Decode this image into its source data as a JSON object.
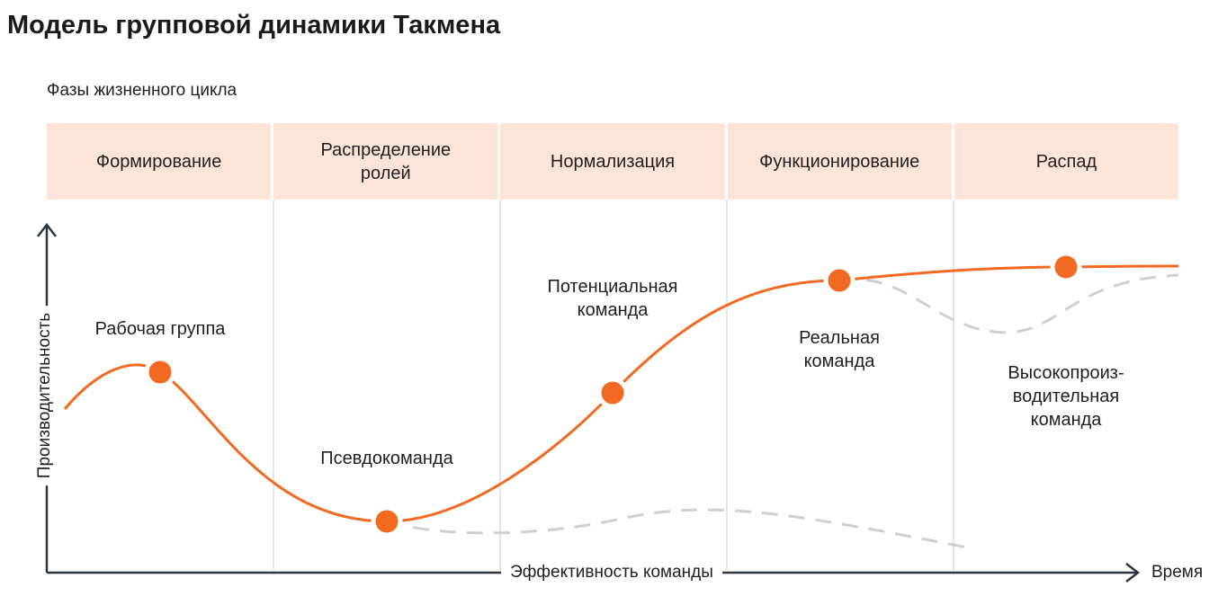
{
  "title": "Модель групповой динамики Такмена",
  "subtitle": "Фазы жизненного цикла",
  "phases": [
    "Формирование",
    "Распределение\nролей",
    "Нормализация",
    "Функционирование",
    "Распад"
  ],
  "axes": {
    "y_label": "Производительность",
    "x_label": "Эффективность команды",
    "x_end_label": "Время"
  },
  "stages": [
    "Рабочая группа",
    "Псевдокоманда",
    "Потенциальная\nкоманда",
    "Реальная\nкоманда",
    "Высокопроиз-\nводительная\nкоманда"
  ],
  "colors": {
    "curve": "#f26a21",
    "point": "#f26a21",
    "dashed": "#cfcfcf",
    "phase_bg": "#fde4d8",
    "axis": "#2b3444",
    "divider": "#e6e6e6"
  }
}
